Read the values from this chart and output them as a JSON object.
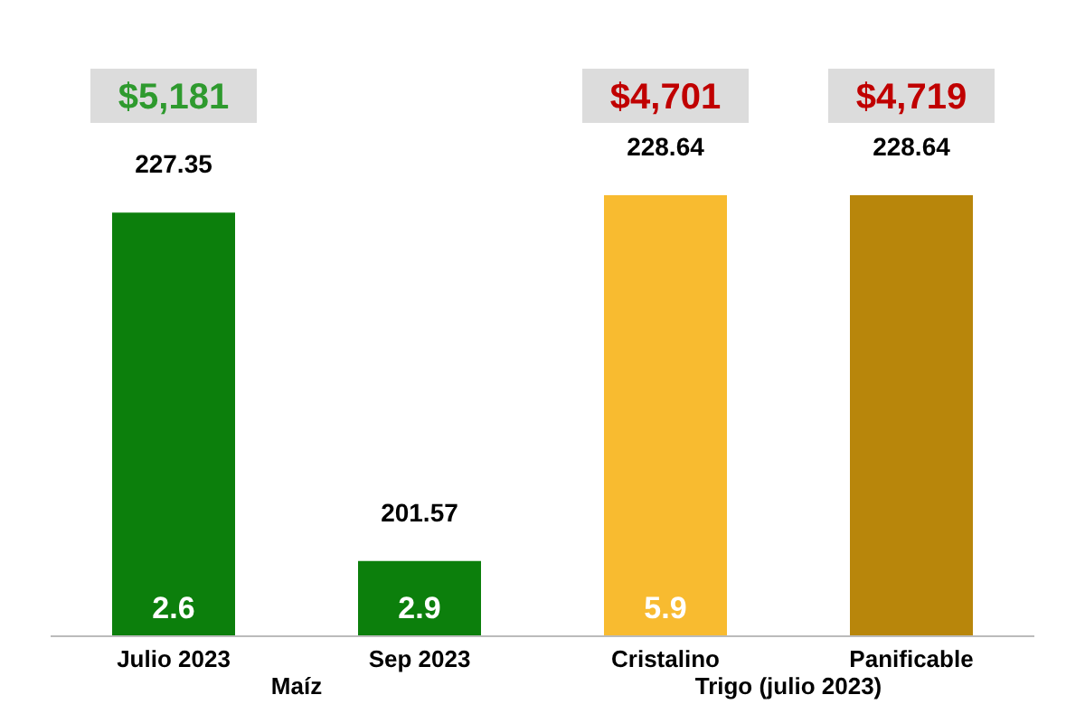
{
  "chart_data": {
    "type": "bar",
    "categories": [
      "Julio 2023",
      "Sep 2023",
      "Cristalino",
      "Panificable"
    ],
    "values": [
      227.35,
      201.57,
      228.64,
      228.64
    ],
    "colors": [
      "#0c7f0c",
      "#0c7f0c",
      "#f8bb30",
      "#b8860b"
    ],
    "data_labels": true,
    "ylim": [
      196,
      228.64
    ],
    "annotations": [
      "$5,181",
      "$4,701",
      "$4,719",
      "2.6",
      "2.9",
      "5.9",
      "Maíz",
      "Trigo (julio 2023)"
    ]
  }
}
